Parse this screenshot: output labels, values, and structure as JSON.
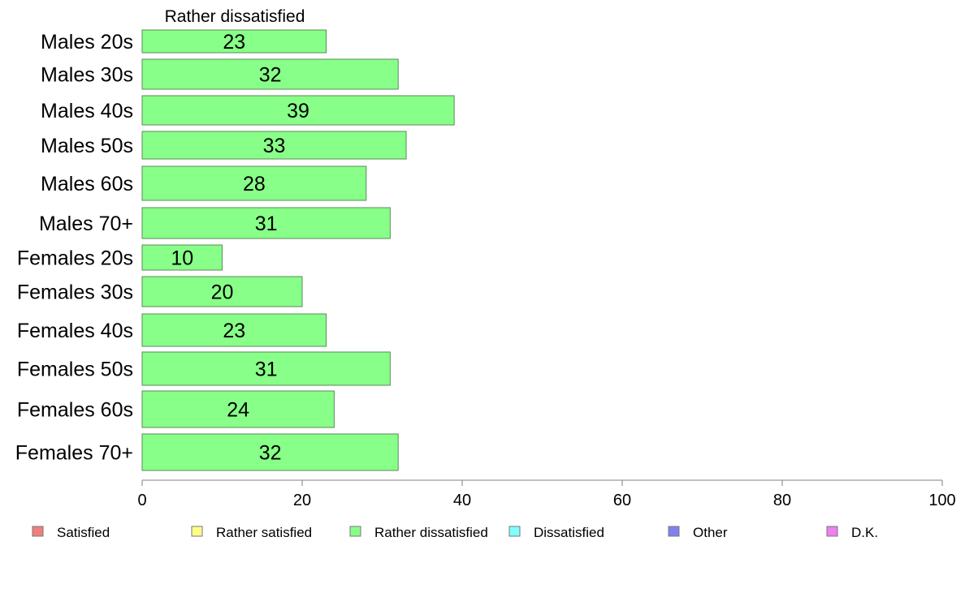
{
  "chart_data": {
    "type": "bar",
    "orientation": "horizontal",
    "title": "Rather dissatisfied",
    "categories": [
      "Males 20s",
      "Males 30s",
      "Males 40s",
      "Males 50s",
      "Males 60s",
      "Males 70+",
      "Females 20s",
      "Females 30s",
      "Females 40s",
      "Females 50s",
      "Females 60s",
      "Females 70+"
    ],
    "series": [
      {
        "name": "Rather dissatisfied",
        "color": "#88ff88",
        "values": [
          23,
          32,
          39,
          33,
          28,
          31,
          10,
          20,
          23,
          31,
          24,
          32
        ]
      }
    ],
    "xlim": [
      0,
      100
    ],
    "xticks": [
      0,
      20,
      40,
      60,
      80,
      100
    ],
    "grid": false,
    "legend_position": "bottom",
    "legend": [
      {
        "label": "Satisfied",
        "color": "#f08080"
      },
      {
        "label": "Rather satisfied",
        "color": "#ffff88"
      },
      {
        "label": "Rather dissatisfied",
        "color": "#88ff88"
      },
      {
        "label": "Dissatisfied",
        "color": "#80ffff"
      },
      {
        "label": "Other",
        "color": "#8080f0"
      },
      {
        "label": "D.K.",
        "color": "#f080f0"
      }
    ],
    "bar_border_color": "#5a8a5a",
    "axis_color": "#808080"
  }
}
